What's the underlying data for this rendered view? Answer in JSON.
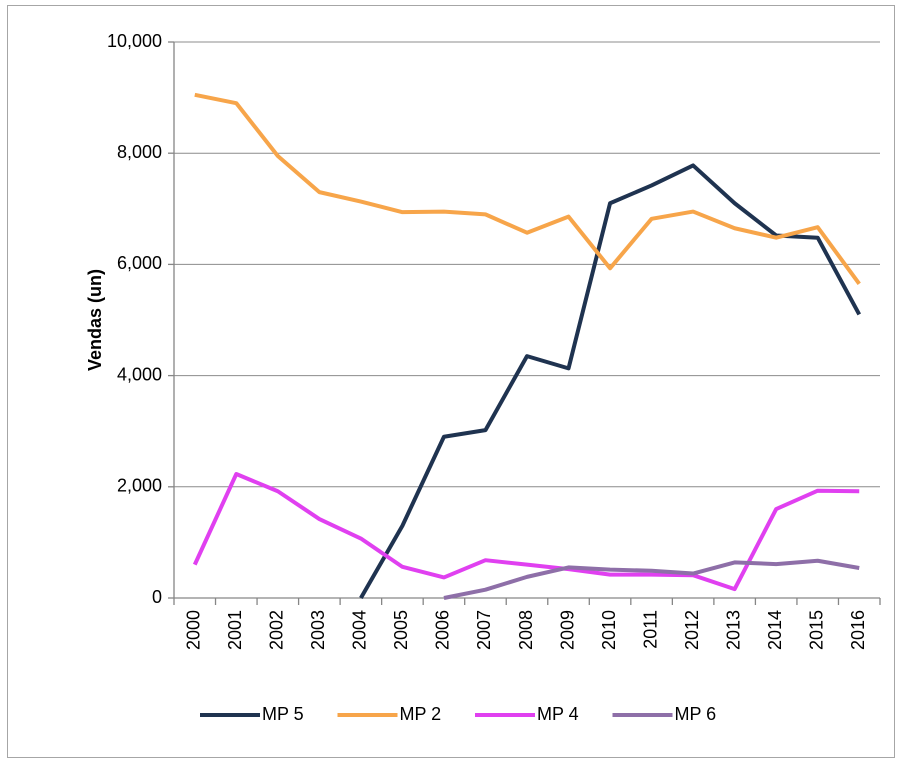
{
  "chart_data": {
    "type": "line",
    "y_label": "Vendas (un)",
    "categories": [
      "2000",
      "2001",
      "2002",
      "2003",
      "2004",
      "2005",
      "2006",
      "2007",
      "2008",
      "2009",
      "2010",
      "2011",
      "2012",
      "2013",
      "2014",
      "2015",
      "2016"
    ],
    "series": [
      {
        "name": "MP 5",
        "color": "#1f3350",
        "values": [
          null,
          null,
          null,
          null,
          0,
          1300,
          2900,
          3020,
          4350,
          4130,
          7100,
          7420,
          7780,
          7100,
          6520,
          6480,
          5100
        ]
      },
      {
        "name": "MP 2",
        "color": "#f7a54a",
        "values": [
          9050,
          8900,
          7950,
          7300,
          7130,
          6940,
          6950,
          6900,
          6570,
          6860,
          5930,
          6820,
          6950,
          6650,
          6480,
          6670,
          5650
        ]
      },
      {
        "name": "MP 4",
        "color": "#e040f0",
        "values": [
          600,
          2230,
          1920,
          1420,
          1070,
          560,
          370,
          680,
          600,
          520,
          420,
          420,
          410,
          160,
          1600,
          1930,
          1920
        ]
      },
      {
        "name": "MP 6",
        "color": "#8e6fa8",
        "values": [
          null,
          null,
          null,
          null,
          null,
          null,
          0,
          150,
          380,
          550,
          510,
          490,
          440,
          640,
          610,
          670,
          540
        ]
      }
    ],
    "ylim": [
      0,
      10000
    ],
    "yticks": [
      0,
      {
        "value": 2000,
        "label": "2,000"
      },
      {
        "value": 4000,
        "label": "4,000"
      },
      {
        "value": 6000,
        "label": "6,000"
      },
      {
        "value": 8000,
        "label": "8,000"
      },
      {
        "value": 10000,
        "label": "10,000"
      }
    ],
    "grid": true,
    "legend": "bottom"
  }
}
